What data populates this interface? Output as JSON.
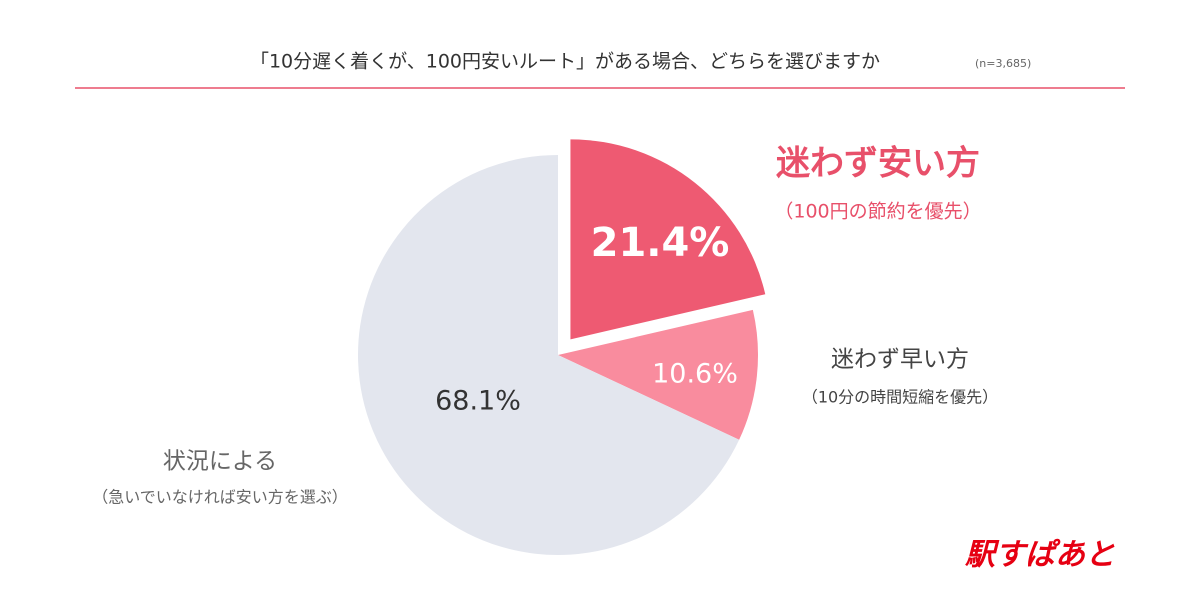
{
  "chart_data": {
    "type": "pie",
    "title": "「10分遅く着くが、100円安いルート」がある場合、どちらを選びますか",
    "subtitle": "(n=3,685)",
    "categories": [
      "迷わず安い方",
      "迷わず早い方",
      "状況による"
    ],
    "descriptions": [
      "（100円の節約を優先）",
      "（10分の時間短縮を優先）",
      "（急いでいなければ安い方を選ぶ）"
    ],
    "values": [
      21.4,
      10.6,
      68.1
    ],
    "value_labels": [
      "21.4%",
      "10.6%",
      "68.1%"
    ],
    "colors": [
      "#ee5a72",
      "#f98c9e",
      "#e3e6ee"
    ],
    "brand": "駅すぱあと"
  }
}
